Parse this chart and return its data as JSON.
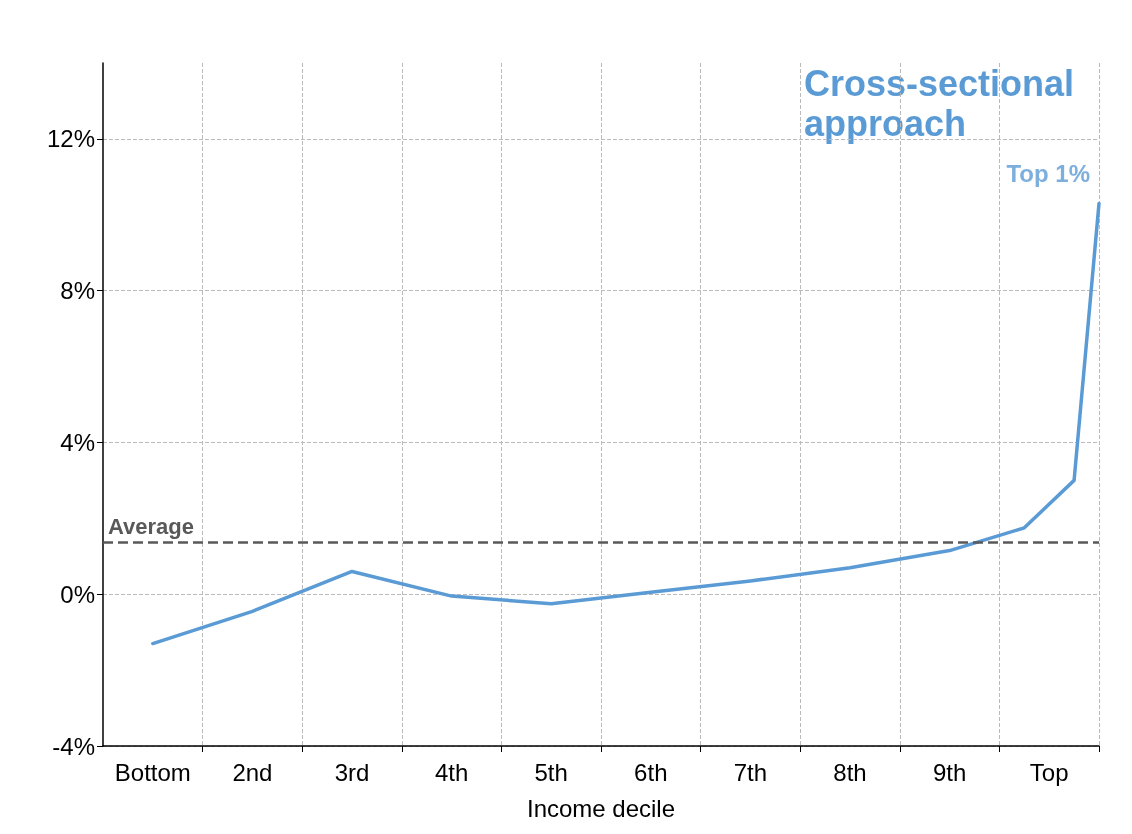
{
  "chart_data": {
    "type": "line",
    "xlabel": "Income decile",
    "x": [
      0.5,
      1.5,
      2.5,
      3.5,
      4.5,
      5.5,
      6.5,
      7.5,
      8.5,
      9.25,
      9.75,
      10
    ],
    "series": [
      {
        "color": "#5b9bd5",
        "values": [
          -1.3,
          -0.45,
          0.6,
          -0.05,
          -0.25,
          0.05,
          0.35,
          0.7,
          1.15,
          1.75,
          3.0,
          10.3
        ]
      }
    ],
    "xlim": [
      0,
      10
    ],
    "xticks": [
      {
        "value": 0.5,
        "label": "Bottom"
      },
      {
        "value": 1.5,
        "label": "2nd"
      },
      {
        "value": 2.5,
        "label": "3rd"
      },
      {
        "value": 3.5,
        "label": "4th"
      },
      {
        "value": 4.5,
        "label": "5th"
      },
      {
        "value": 5.5,
        "label": "6th"
      },
      {
        "value": 6.5,
        "label": "7th"
      },
      {
        "value": 7.5,
        "label": "8th"
      },
      {
        "value": 8.5,
        "label": "9th"
      },
      {
        "value": 9.5,
        "label": "Top"
      },
      {
        "value": 1,
        "label": null
      },
      {
        "value": 2,
        "label": null
      },
      {
        "value": 3,
        "label": null
      },
      {
        "value": 4,
        "label": null
      },
      {
        "value": 5,
        "label": null
      },
      {
        "value": 6,
        "label": null
      },
      {
        "value": 7,
        "label": null
      },
      {
        "value": 8,
        "label": null
      },
      {
        "value": 9,
        "label": null
      },
      {
        "value": 10,
        "label": null
      }
    ],
    "ylim": [
      -4,
      14
    ],
    "yticks": [
      {
        "value": -4,
        "label": "-4%"
      },
      {
        "value": 0,
        "label": "0%"
      },
      {
        "value": 4,
        "label": "4%"
      },
      {
        "value": 8,
        "label": "8%"
      },
      {
        "value": 12,
        "label": "12%"
      }
    ],
    "grid": true,
    "marker": "none",
    "line_style": "solid",
    "ref_lines": [
      {
        "axis": "y",
        "value": 1.37,
        "label": "Average",
        "color": "#595959",
        "line_style": "dashed"
      }
    ],
    "annotations": [
      "Cross-sectional approach",
      {
        "text": "Top 1%",
        "x": 10,
        "y": 10.3
      }
    ]
  }
}
